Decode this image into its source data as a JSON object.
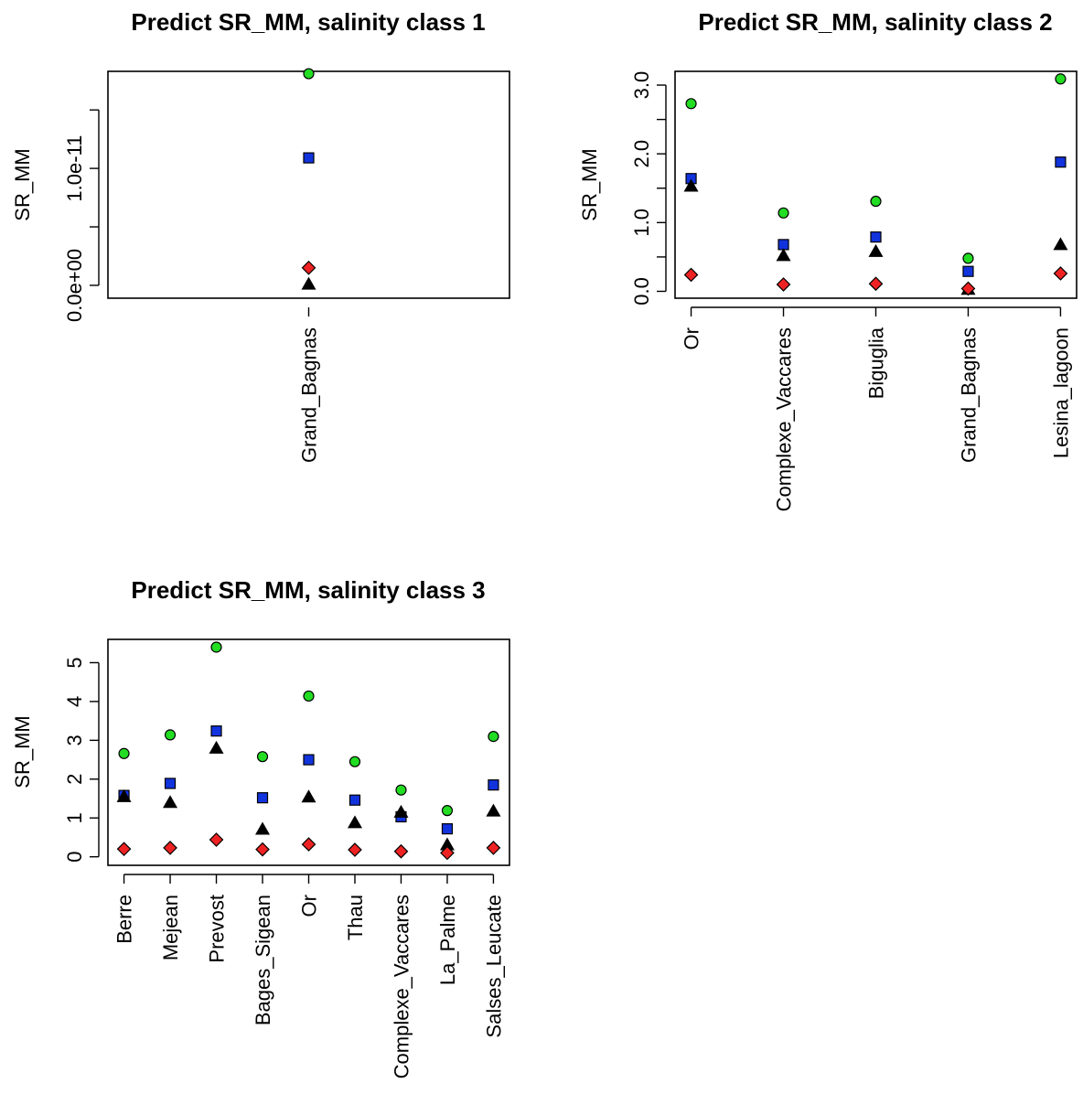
{
  "chart_data": [
    {
      "type": "scatter",
      "title": "Predict SR_MM, salinity class 1",
      "xlabel": "",
      "ylabel": "SR_MM",
      "categories": [
        "Grand_Bagnas"
      ],
      "ylim": [
        -1.1e-12,
        1.83e-11
      ],
      "yticks": [
        0,
        5e-12,
        1e-11,
        1.5e-11
      ],
      "ytick_labels": [
        "0.0e+00",
        "",
        "1.0e-11",
        ""
      ],
      "series": [
        {
          "marker": "circle",
          "color": "#22dd22",
          "values": [
            1.81e-11
          ]
        },
        {
          "marker": "square",
          "color": "#1133dd",
          "values": [
            1.09e-11
          ]
        },
        {
          "marker": "diamond",
          "color": "#ee2222",
          "values": [
            1.5e-12
          ]
        },
        {
          "marker": "triangle",
          "color": "#000000",
          "values": [
            1e-13
          ]
        }
      ],
      "grid": false,
      "legend": "none"
    },
    {
      "type": "scatter",
      "title": "Predict SR_MM, salinity class 2",
      "xlabel": "",
      "ylabel": "SR_MM",
      "categories": [
        "Or",
        "Complexe_Vaccares",
        "Biguglia",
        "Grand_Bagnas",
        "Lesina_lagoon"
      ],
      "ylim": [
        -0.1,
        3.2
      ],
      "yticks": [
        0,
        0.5,
        1,
        1.5,
        2,
        2.5,
        3
      ],
      "ytick_labels": [
        "0.0",
        "",
        "1.0",
        "",
        "2.0",
        "",
        "3.0"
      ],
      "series": [
        {
          "marker": "circle",
          "color": "#22dd22",
          "values": [
            2.73,
            1.14,
            1.31,
            0.48,
            3.09
          ]
        },
        {
          "marker": "square",
          "color": "#1133dd",
          "values": [
            1.64,
            0.68,
            0.79,
            0.29,
            1.88
          ]
        },
        {
          "marker": "triangle",
          "color": "#000000",
          "values": [
            1.53,
            0.52,
            0.58,
            0.03,
            0.68
          ]
        },
        {
          "marker": "diamond",
          "color": "#ee2222",
          "values": [
            0.24,
            0.1,
            0.11,
            0.04,
            0.26
          ]
        }
      ],
      "grid": false,
      "legend": "none"
    },
    {
      "type": "scatter",
      "title": "Predict SR_MM, salinity class 3",
      "xlabel": "",
      "ylabel": "SR_MM",
      "categories": [
        "Berre",
        "Mejean",
        "Prevost",
        "Bages_Sigean",
        "Or",
        "Thau",
        "Complexe_Vaccares",
        "La_Palme",
        "Salses_Leucate"
      ],
      "ylim": [
        -0.22,
        5.6
      ],
      "yticks": [
        0,
        1,
        2,
        3,
        4,
        5
      ],
      "ytick_labels": [
        "0",
        "1",
        "2",
        "3",
        "4",
        "5"
      ],
      "series": [
        {
          "marker": "circle",
          "color": "#22dd22",
          "values": [
            2.66,
            3.14,
            5.4,
            2.58,
            4.14,
            2.45,
            1.72,
            1.19,
            3.1
          ]
        },
        {
          "marker": "square",
          "color": "#1133dd",
          "values": [
            1.58,
            1.89,
            3.24,
            1.52,
            2.5,
            1.46,
            1.03,
            0.72,
            1.85
          ]
        },
        {
          "marker": "triangle",
          "color": "#000000",
          "values": [
            1.55,
            1.4,
            2.8,
            0.71,
            1.54,
            0.88,
            1.15,
            0.31,
            1.18
          ]
        },
        {
          "marker": "diamond",
          "color": "#ee2222",
          "values": [
            0.2,
            0.23,
            0.44,
            0.19,
            0.32,
            0.18,
            0.14,
            0.1,
            0.23
          ]
        }
      ],
      "grid": false,
      "legend": "none"
    }
  ]
}
